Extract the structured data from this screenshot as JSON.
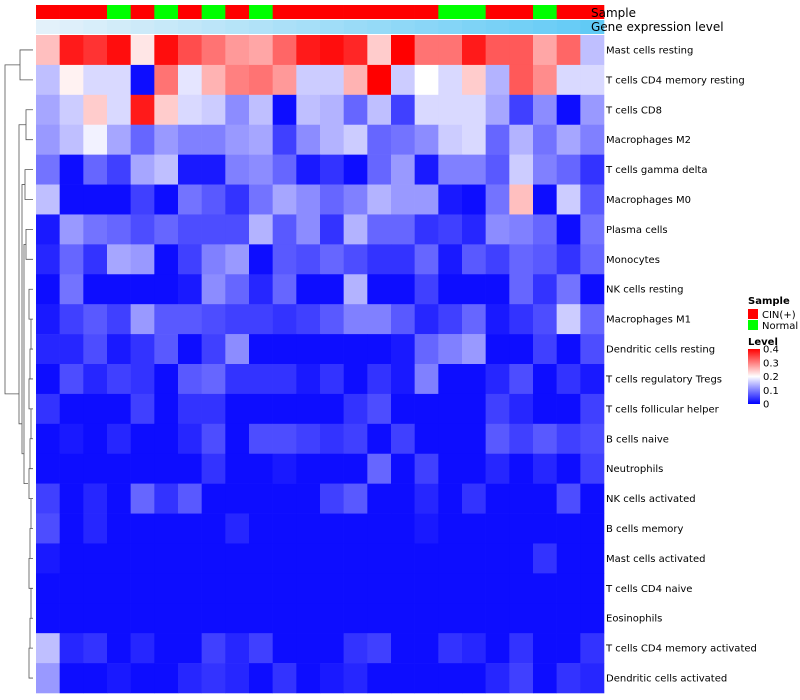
{
  "chart_data": {
    "type": "heatmap",
    "annotation_labels": {
      "sample": "Sample",
      "expression": "Gene expression level"
    },
    "legend": {
      "sample_title": "Sample",
      "sample_entries": [
        {
          "label": "CIN(+)",
          "color": "#ff0000"
        },
        {
          "label": "Normal",
          "color": "#00ff00"
        }
      ],
      "level_title": "Level",
      "level_ticks": [
        "0.4",
        "0.3",
        "0.2",
        "0.1",
        "0"
      ],
      "level_tick_values": [
        0.4,
        0.3,
        0.2,
        0.1,
        0
      ],
      "level_range": [
        0,
        0.4
      ],
      "placement": "right"
    },
    "colors": {
      "low": "#0000ff",
      "mid": "#ffffff",
      "high": "#ff0000",
      "cin": "#ff0000",
      "normal": "#00ff00"
    },
    "sample_groups": [
      "CIN(+)",
      "CIN(+)",
      "CIN(+)",
      "Normal",
      "CIN(+)",
      "Normal",
      "CIN(+)",
      "Normal",
      "CIN(+)",
      "Normal",
      "CIN(+)",
      "CIN(+)",
      "CIN(+)",
      "CIN(+)",
      "CIN(+)",
      "CIN(+)",
      "CIN(+)",
      "Normal",
      "Normal",
      "CIN(+)",
      "CIN(+)",
      "Normal",
      "CIN(+)",
      "CIN(+)"
    ],
    "expression_level": [
      0.02,
      0.06,
      0.1,
      0.14,
      0.18,
      0.22,
      0.26,
      0.3,
      0.34,
      0.38,
      0.42,
      0.46,
      0.5,
      0.54,
      0.58,
      0.62,
      0.66,
      0.7,
      0.74,
      0.78,
      0.82,
      0.86,
      0.9,
      0.95
    ],
    "rows": [
      "Mast cells resting",
      "T cells CD4 memory resting",
      "T cells CD8",
      "Macrophages M2",
      "T cells gamma delta",
      "Macrophages M0",
      "Plasma cells",
      "Monocytes",
      "NK cells resting",
      "Macrophages M1",
      "Dendritic cells resting",
      "T cells regulatory  Tregs",
      "T cells follicular helper",
      "B cells naive",
      "Neutrophils",
      "NK cells activated",
      "B cells memory",
      "Mast cells activated",
      "T cells CD4 naive",
      "Eosinophils",
      "T cells CD4 memory activated",
      "Dendritic cells activated"
    ],
    "values": [
      [
        0.25,
        0.38,
        0.36,
        0.39,
        0.22,
        0.39,
        0.34,
        0.31,
        0.28,
        0.27,
        0.32,
        0.38,
        0.39,
        0.37,
        0.24,
        0.4,
        0.31,
        0.31,
        0.38,
        0.33,
        0.33,
        0.27,
        0.32,
        0.15
      ],
      [
        0.15,
        0.21,
        0.17,
        0.17,
        0.01,
        0.31,
        0.18,
        0.26,
        0.3,
        0.31,
        0.28,
        0.16,
        0.16,
        0.26,
        0.4,
        0.16,
        0.2,
        0.17,
        0.24,
        0.14,
        0.33,
        0.29,
        0.17,
        0.17
      ],
      [
        0.13,
        0.16,
        0.24,
        0.17,
        0.38,
        0.24,
        0.17,
        0.16,
        0.11,
        0.15,
        0.01,
        0.15,
        0.14,
        0.08,
        0.15,
        0.05,
        0.17,
        0.17,
        0.17,
        0.13,
        0.05,
        0.11,
        0.01,
        0.12
      ],
      [
        0.12,
        0.15,
        0.19,
        0.13,
        0.08,
        0.12,
        0.1,
        0.1,
        0.12,
        0.13,
        0.05,
        0.11,
        0.14,
        0.16,
        0.08,
        0.09,
        0.11,
        0.16,
        0.17,
        0.08,
        0.14,
        0.09,
        0.13,
        0.1
      ],
      [
        0.09,
        0.01,
        0.08,
        0.05,
        0.13,
        0.15,
        0.02,
        0.02,
        0.1,
        0.11,
        0.08,
        0.02,
        0.04,
        0.01,
        0.08,
        0.12,
        0.02,
        0.1,
        0.1,
        0.07,
        0.16,
        0.1,
        0.08,
        0.04
      ],
      [
        0.15,
        0.01,
        0.01,
        0.01,
        0.05,
        0.01,
        0.09,
        0.07,
        0.04,
        0.09,
        0.13,
        0.11,
        0.08,
        0.1,
        0.14,
        0.12,
        0.12,
        0.02,
        0.01,
        0.09,
        0.25,
        0.01,
        0.16,
        0.07
      ],
      [
        0.02,
        0.12,
        0.09,
        0.08,
        0.06,
        0.08,
        0.06,
        0.06,
        0.06,
        0.14,
        0.07,
        0.11,
        0.04,
        0.14,
        0.08,
        0.08,
        0.04,
        0.05,
        0.03,
        0.11,
        0.1,
        0.08,
        0.01,
        0.09
      ],
      [
        0.03,
        0.08,
        0.04,
        0.13,
        0.12,
        0.01,
        0.05,
        0.1,
        0.12,
        0.01,
        0.07,
        0.06,
        0.08,
        0.06,
        0.04,
        0.04,
        0.08,
        0.02,
        0.07,
        0.05,
        0.08,
        0.07,
        0.04,
        0.08
      ],
      [
        0.01,
        0.09,
        0.01,
        0.01,
        0.01,
        0.01,
        0.02,
        0.11,
        0.08,
        0.03,
        0.08,
        0.01,
        0.01,
        0.14,
        0.01,
        0.01,
        0.05,
        0.01,
        0.01,
        0.01,
        0.08,
        0.04,
        0.09,
        0.01
      ],
      [
        0.02,
        0.05,
        0.07,
        0.05,
        0.12,
        0.07,
        0.07,
        0.06,
        0.05,
        0.05,
        0.04,
        0.05,
        0.07,
        0.1,
        0.1,
        0.07,
        0.03,
        0.05,
        0.08,
        0.02,
        0.04,
        0.06,
        0.16,
        0.08
      ],
      [
        0.03,
        0.03,
        0.06,
        0.02,
        0.04,
        0.07,
        0.01,
        0.05,
        0.11,
        0.01,
        0.01,
        0.01,
        0.01,
        0.01,
        0.01,
        0.02,
        0.08,
        0.1,
        0.12,
        0.01,
        0.01,
        0.05,
        0.01,
        0.06
      ],
      [
        0.01,
        0.06,
        0.03,
        0.05,
        0.04,
        0.01,
        0.07,
        0.08,
        0.04,
        0.04,
        0.04,
        0.02,
        0.04,
        0.01,
        0.04,
        0.02,
        0.1,
        0.01,
        0.01,
        0.03,
        0.06,
        0.01,
        0.04,
        0.02
      ],
      [
        0.04,
        0.01,
        0.01,
        0.01,
        0.05,
        0.01,
        0.04,
        0.04,
        0.01,
        0.01,
        0.01,
        0.01,
        0.01,
        0.04,
        0.06,
        0.01,
        0.01,
        0.01,
        0.01,
        0.05,
        0.03,
        0.01,
        0.01,
        0.05
      ],
      [
        0.01,
        0.02,
        0.01,
        0.03,
        0.01,
        0.01,
        0.03,
        0.06,
        0.01,
        0.06,
        0.06,
        0.05,
        0.04,
        0.05,
        0.01,
        0.05,
        0.01,
        0.01,
        0.01,
        0.07,
        0.05,
        0.07,
        0.05,
        0.06
      ],
      [
        0.01,
        0.01,
        0.01,
        0.01,
        0.01,
        0.01,
        0.01,
        0.04,
        0.01,
        0.01,
        0.02,
        0.01,
        0.01,
        0.01,
        0.08,
        0.01,
        0.05,
        0.01,
        0.01,
        0.03,
        0.01,
        0.03,
        0.01,
        0.05
      ],
      [
        0.05,
        0.01,
        0.03,
        0.01,
        0.08,
        0.04,
        0.07,
        0.01,
        0.01,
        0.01,
        0.01,
        0.01,
        0.05,
        0.07,
        0.01,
        0.01,
        0.03,
        0.01,
        0.04,
        0.01,
        0.01,
        0.01,
        0.06,
        0.01
      ],
      [
        0.06,
        0.01,
        0.03,
        0.01,
        0.01,
        0.01,
        0.01,
        0.01,
        0.03,
        0.01,
        0.01,
        0.01,
        0.01,
        0.01,
        0.01,
        0.01,
        0.02,
        0.01,
        0.01,
        0.01,
        0.01,
        0.01,
        0.01,
        0.01
      ],
      [
        0.02,
        0.01,
        0.01,
        0.01,
        0.01,
        0.01,
        0.01,
        0.01,
        0.01,
        0.01,
        0.01,
        0.01,
        0.01,
        0.01,
        0.01,
        0.01,
        0.01,
        0.01,
        0.01,
        0.01,
        0.01,
        0.04,
        0.01,
        0.01
      ],
      [
        0.01,
        0.01,
        0.01,
        0.01,
        0.01,
        0.01,
        0.01,
        0.01,
        0.01,
        0.01,
        0.01,
        0.01,
        0.01,
        0.01,
        0.01,
        0.01,
        0.01,
        0.01,
        0.01,
        0.01,
        0.01,
        0.01,
        0.01,
        0.01
      ],
      [
        0.01,
        0.01,
        0.01,
        0.01,
        0.01,
        0.01,
        0.01,
        0.01,
        0.01,
        0.01,
        0.01,
        0.01,
        0.01,
        0.01,
        0.01,
        0.01,
        0.01,
        0.01,
        0.01,
        0.01,
        0.01,
        0.01,
        0.01,
        0.01
      ],
      [
        0.15,
        0.03,
        0.04,
        0.01,
        0.03,
        0.01,
        0.01,
        0.05,
        0.03,
        0.05,
        0.01,
        0.01,
        0.01,
        0.04,
        0.05,
        0.01,
        0.01,
        0.04,
        0.03,
        0.01,
        0.04,
        0.01,
        0.01,
        0.04
      ],
      [
        0.12,
        0.01,
        0.01,
        0.02,
        0.01,
        0.01,
        0.03,
        0.04,
        0.03,
        0.01,
        0.04,
        0.01,
        0.02,
        0.03,
        0.01,
        0.01,
        0.01,
        0.01,
        0.01,
        0.03,
        0.05,
        0.01,
        0.04,
        0.03
      ]
    ]
  }
}
